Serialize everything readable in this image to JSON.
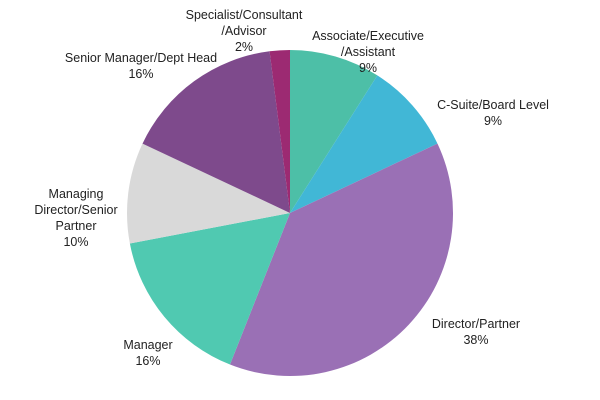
{
  "chart_data": {
    "type": "pie",
    "start": "top",
    "direction": "clockwise",
    "slices": [
      {
        "label": [
          "Associate/Executive",
          "/Assistant"
        ],
        "value": 9,
        "pct": "9%",
        "color": "#4dbfa7"
      },
      {
        "label": [
          "C-Suite/Board Level"
        ],
        "value": 9,
        "pct": "9%",
        "color": "#41b7d6"
      },
      {
        "label": [
          "Director/Partner"
        ],
        "value": 38,
        "pct": "38%",
        "color": "#9a70b5"
      },
      {
        "label": [
          "Manager"
        ],
        "value": 16,
        "pct": "16%",
        "color": "#50c9b1"
      },
      {
        "label": [
          "Managing",
          "Director/Senior",
          "Partner"
        ],
        "value": 10,
        "pct": "10%",
        "color": "#d9d9d9"
      },
      {
        "label": [
          "Senior Manager/Dept Head"
        ],
        "value": 16,
        "pct": "16%",
        "color": "#7e4a8c"
      },
      {
        "label": [
          "Specialist/Consultant",
          "/Advisor"
        ],
        "value": 2,
        "pct": "2%",
        "color": "#9c2a72"
      }
    ]
  }
}
